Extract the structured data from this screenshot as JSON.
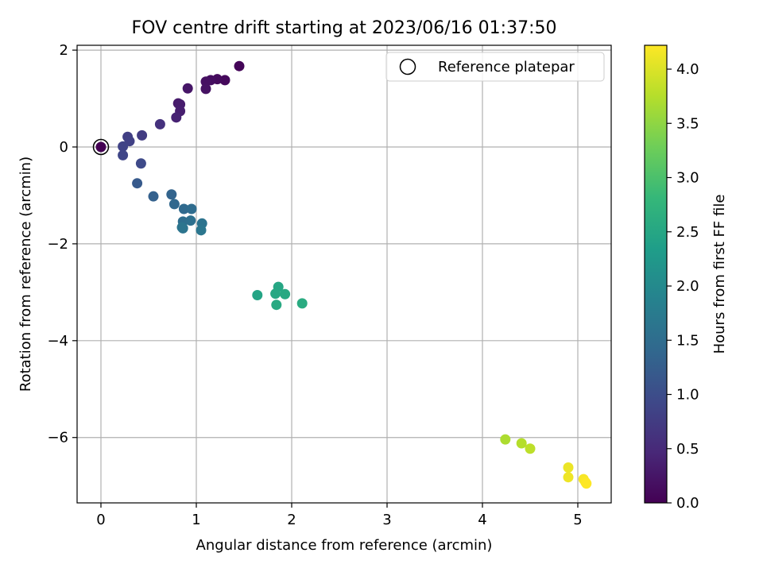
{
  "chart_data": {
    "type": "scatter",
    "title": "FOV centre drift starting at 2023/06/16 01:37:50",
    "xlabel": "Angular distance from reference (arcmin)",
    "ylabel": "Rotation from reference (arcmin)",
    "xlim": [
      -0.25,
      5.35
    ],
    "ylim": [
      -7.35,
      2.1
    ],
    "xticks": [
      0,
      1,
      2,
      3,
      4,
      5
    ],
    "yticks": [
      -6,
      -4,
      -2,
      0,
      2
    ],
    "xtick_labels": [
      "0",
      "1",
      "2",
      "3",
      "4",
      "5"
    ],
    "ytick_labels": [
      "−6",
      "−4",
      "−2",
      "0",
      "2"
    ],
    "grid": true,
    "legend": {
      "label": "Reference platepar",
      "placement": "top-right",
      "marker": "hollow circle"
    },
    "reference_point": {
      "x": 0,
      "y": 0
    },
    "colorbar": {
      "label": "Hours from first FF file",
      "colormap": "viridis",
      "range": [
        0.0,
        4.22
      ],
      "ticks": [
        0.0,
        0.5,
        1.0,
        1.5,
        2.0,
        2.5,
        3.0,
        3.5,
        4.0
      ],
      "tick_labels": [
        "0.0",
        "0.5",
        "1.0",
        "1.5",
        "2.0",
        "2.5",
        "3.0",
        "3.5",
        "4.0"
      ]
    },
    "points": [
      {
        "x": 0.0,
        "y": 0.0,
        "hours": 0.0
      },
      {
        "x": 1.45,
        "y": 1.67,
        "hours": 0.05
      },
      {
        "x": 1.3,
        "y": 1.38,
        "hours": 0.1
      },
      {
        "x": 1.22,
        "y": 1.4,
        "hours": 0.12
      },
      {
        "x": 1.15,
        "y": 1.38,
        "hours": 0.15
      },
      {
        "x": 1.1,
        "y": 1.35,
        "hours": 0.18
      },
      {
        "x": 1.1,
        "y": 1.2,
        "hours": 0.2
      },
      {
        "x": 0.91,
        "y": 1.21,
        "hours": 0.25
      },
      {
        "x": 0.81,
        "y": 0.9,
        "hours": 0.3
      },
      {
        "x": 0.83,
        "y": 0.88,
        "hours": 0.32
      },
      {
        "x": 0.83,
        "y": 0.74,
        "hours": 0.35
      },
      {
        "x": 0.79,
        "y": 0.61,
        "hours": 0.4
      },
      {
        "x": 0.62,
        "y": 0.47,
        "hours": 0.6
      },
      {
        "x": 0.43,
        "y": 0.24,
        "hours": 0.75
      },
      {
        "x": 0.28,
        "y": 0.21,
        "hours": 0.8
      },
      {
        "x": 0.3,
        "y": 0.12,
        "hours": 0.82
      },
      {
        "x": 0.23,
        "y": 0.01,
        "hours": 0.85
      },
      {
        "x": 0.23,
        "y": -0.17,
        "hours": 0.88
      },
      {
        "x": 0.42,
        "y": -0.34,
        "hours": 0.95
      },
      {
        "x": 0.38,
        "y": -0.75,
        "hours": 1.2
      },
      {
        "x": 0.55,
        "y": -1.02,
        "hours": 1.3
      },
      {
        "x": 0.74,
        "y": -0.98,
        "hours": 1.35
      },
      {
        "x": 0.77,
        "y": -1.18,
        "hours": 1.4
      },
      {
        "x": 0.87,
        "y": -1.28,
        "hours": 1.45
      },
      {
        "x": 0.95,
        "y": -1.28,
        "hours": 1.48
      },
      {
        "x": 0.86,
        "y": -1.54,
        "hours": 1.52
      },
      {
        "x": 0.94,
        "y": -1.52,
        "hours": 1.55
      },
      {
        "x": 1.06,
        "y": -1.58,
        "hours": 1.6
      },
      {
        "x": 0.86,
        "y": -1.68,
        "hours": 1.62
      },
      {
        "x": 0.85,
        "y": -1.66,
        "hours": 1.64
      },
      {
        "x": 1.05,
        "y": -1.72,
        "hours": 1.66
      },
      {
        "x": 1.64,
        "y": -3.06,
        "hours": 2.45
      },
      {
        "x": 1.86,
        "y": -2.89,
        "hours": 2.5
      },
      {
        "x": 1.83,
        "y": -3.03,
        "hours": 2.52
      },
      {
        "x": 1.93,
        "y": -3.04,
        "hours": 2.54
      },
      {
        "x": 1.84,
        "y": -3.26,
        "hours": 2.56
      },
      {
        "x": 2.11,
        "y": -3.23,
        "hours": 2.58
      },
      {
        "x": 4.24,
        "y": -6.04,
        "hours": 3.7
      },
      {
        "x": 4.41,
        "y": -6.12,
        "hours": 3.75
      },
      {
        "x": 4.5,
        "y": -6.23,
        "hours": 3.8
      },
      {
        "x": 4.9,
        "y": -6.62,
        "hours": 4.1
      },
      {
        "x": 4.9,
        "y": -6.82,
        "hours": 4.12
      },
      {
        "x": 5.06,
        "y": -6.86,
        "hours": 4.18
      },
      {
        "x": 5.08,
        "y": -6.92,
        "hours": 4.2
      },
      {
        "x": 5.09,
        "y": -6.95,
        "hours": 4.22
      }
    ]
  },
  "colors": {
    "grid": "#b0b0b0",
    "axes": "#000000",
    "viridis": [
      "#440154",
      "#482878",
      "#3e4989",
      "#31688e",
      "#26828e",
      "#1f9e89",
      "#35b779",
      "#6ece58",
      "#b5de2b",
      "#fde725"
    ]
  }
}
